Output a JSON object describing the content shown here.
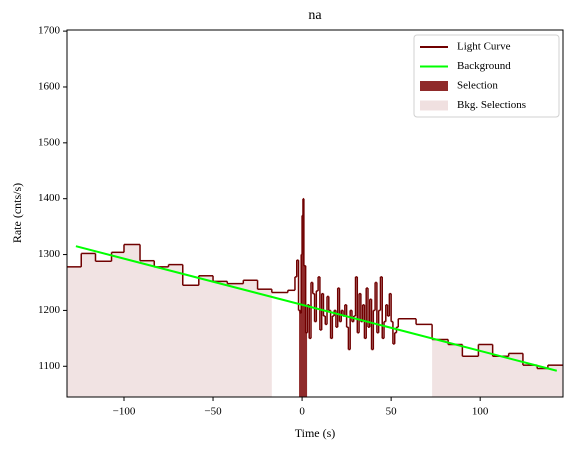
{
  "chart_data": {
    "type": "step",
    "title": "na",
    "x_label": "Time (s)",
    "y_label": "Rate (cnts/s)",
    "xlim": [
      -132,
      146.5
    ],
    "ylim": [
      1045,
      1702
    ],
    "xticks": [
      {
        "value": -100,
        "label": "−100"
      },
      {
        "value": -50,
        "label": "−50"
      },
      0,
      50,
      100
    ],
    "yticks": [
      1100,
      1200,
      1300,
      1400,
      1500,
      1600,
      1700
    ],
    "legend": "upper right",
    "series": [
      {
        "name": "Light Curve",
        "color": "#700000",
        "bins": [
          -132,
          -124,
          -116,
          -107,
          -100,
          -91,
          -83,
          -75,
          -67,
          -58,
          -50,
          -42,
          -33,
          -25,
          -17,
          -8,
          -4,
          -3,
          -2,
          -1,
          -0.5,
          0,
          0.5,
          1,
          2,
          3,
          4,
          5,
          6,
          7,
          8,
          9,
          10,
          11,
          12,
          13,
          14,
          15,
          16,
          17,
          18,
          19,
          20,
          21,
          22,
          23,
          24,
          25,
          26,
          27,
          28,
          29,
          30,
          31,
          32,
          33,
          34,
          35,
          36,
          37,
          38,
          39,
          40,
          41,
          42,
          43,
          44,
          45,
          46,
          47,
          48,
          49,
          50,
          51,
          52,
          53,
          54,
          64,
          73,
          82,
          90,
          99,
          107,
          116,
          124,
          132,
          138,
          146.5
        ],
        "values": [
          1278,
          1302,
          1288,
          1304,
          1318,
          1289,
          1278,
          1282,
          1245,
          1262,
          1252,
          1248,
          1254,
          1238,
          1232,
          1236,
          1260,
          1290,
          1200,
          1195,
          1300,
          1370,
          1400,
          1280,
          1160,
          1210,
          1150,
          1250,
          1230,
          1180,
          1235,
          1260,
          1165,
          1230,
          1190,
          1175,
          1225,
          1200,
          1150,
          1190,
          1200,
          1170,
          1240,
          1180,
          1200,
          1190,
          1210,
          1170,
          1130,
          1200,
          1180,
          1190,
          1260,
          1160,
          1230,
          1180,
          1210,
          1150,
          1240,
          1170,
          1220,
          1130,
          1200,
          1250,
          1160,
          1200,
          1260,
          1150,
          1180,
          1210,
          1190,
          1230,
          1180,
          1140,
          1160,
          1170,
          1185,
          1175,
          1148,
          1139,
          1118,
          1139,
          1118,
          1123,
          1102,
          1096,
          1102
        ]
      },
      {
        "name": "Background",
        "color": "#00ff00",
        "x": [
          -127,
          143
        ],
        "values": [
          1315,
          1092
        ]
      }
    ],
    "selection": {
      "name": "Selection",
      "color": "#8f2a2a",
      "range": [
        -1.7,
        2.8
      ]
    },
    "bkg_selections": {
      "name": "Bkg. Selections",
      "color": "#f0e0e0",
      "ranges": [
        [
          -132,
          -17
        ],
        [
          73,
          146.5
        ]
      ]
    }
  }
}
